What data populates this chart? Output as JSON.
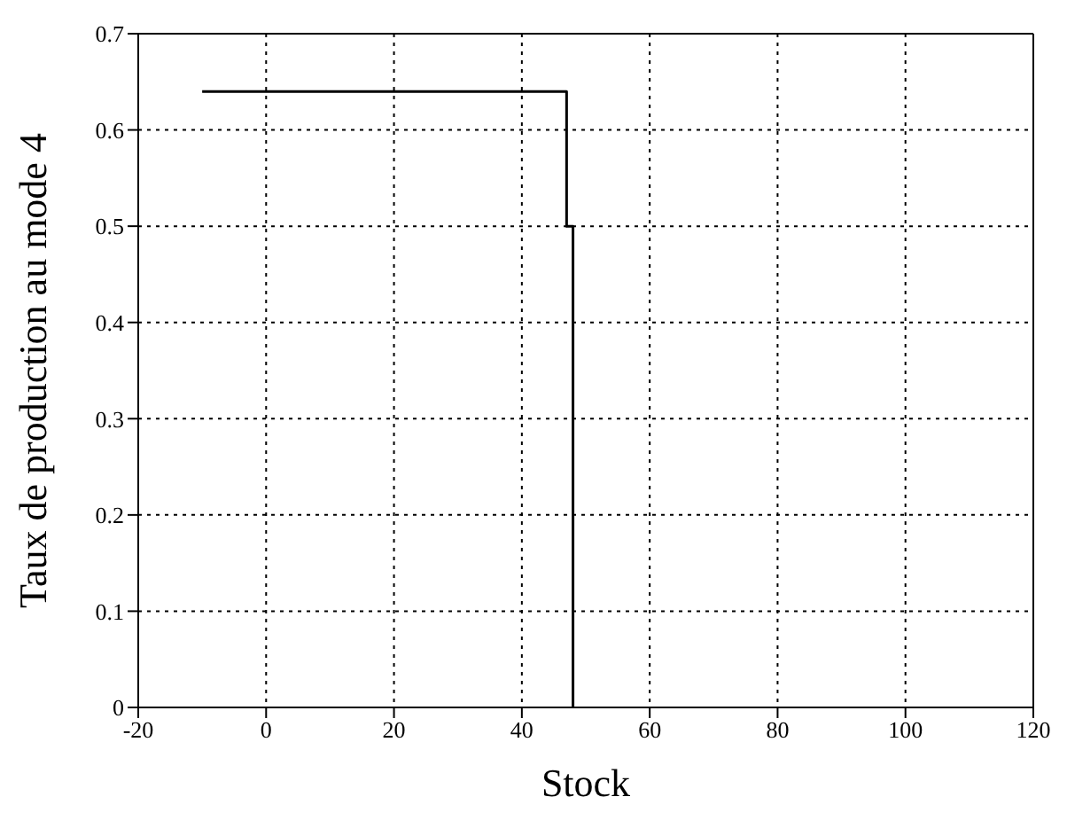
{
  "chart_data": {
    "type": "line",
    "xlabel": "Stock",
    "ylabel": "Taux de production au mode 4",
    "series": [
      {
        "color": "#000000",
        "x": [
          -10,
          47,
          47,
          48,
          48
        ],
        "values": [
          0.64,
          0.64,
          0.5,
          0.5,
          0
        ]
      }
    ],
    "xlim": [
      -20,
      120
    ],
    "xticks": [
      -20,
      0,
      20,
      40,
      60,
      80,
      100,
      120
    ],
    "ylim": [
      0,
      0.7
    ],
    "yticks": [
      0,
      0.1,
      0.2,
      0.3,
      0.4,
      0.5,
      0.6,
      0.7
    ],
    "grid": true,
    "legend": false,
    "marker": "none",
    "line_style": "solid"
  }
}
